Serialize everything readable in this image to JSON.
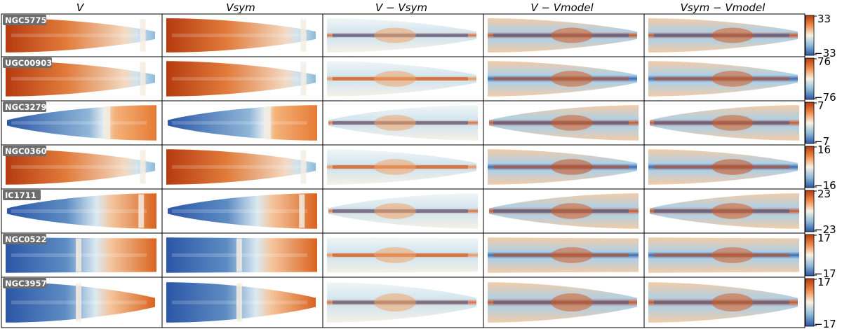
{
  "figure": {
    "column_titles": [
      {
        "main": "V",
        "sub": ""
      },
      {
        "main": "V",
        "sub": "sym"
      },
      {
        "main": "V − V",
        "sub": "sym"
      },
      {
        "main": "V − V",
        "sub": "model"
      },
      {
        "main": "V",
        "sub": "sym",
        "tail": " − V",
        "tail_sub": "model"
      }
    ],
    "column_title_texts": [
      "V",
      "Vsym",
      "V − Vsym",
      "V − Vmodel",
      "Vsym − Vmodel"
    ],
    "rows": [
      {
        "galaxy": "NGC5775",
        "cb_max": "33",
        "cb_min": "−33",
        "shape": "tail-right",
        "lead_side": "left"
      },
      {
        "galaxy": "UGC00903",
        "cb_max": "76",
        "cb_min": "−76",
        "shape": "tail-right",
        "lead_side": "left"
      },
      {
        "galaxy": "NGC3279",
        "cb_max": "7",
        "cb_min": "−7",
        "shape": "tail-left",
        "lead_side": "right"
      },
      {
        "galaxy": "NGC0360",
        "cb_max": "16",
        "cb_min": "−16",
        "shape": "tail-right",
        "lead_side": "left"
      },
      {
        "galaxy": "IC1711",
        "cb_max": "23",
        "cb_min": "−23",
        "shape": "tail-left",
        "lead_side": "right"
      },
      {
        "galaxy": "NGC0522",
        "cb_max": "17",
        "cb_min": "−17",
        "shape": "rect",
        "lead_side": "right"
      },
      {
        "galaxy": "NGC3957",
        "cb_max": "17",
        "cb_min": "−17",
        "shape": "tail-right",
        "lead_side": "right"
      }
    ],
    "colormap": {
      "low": "#2b56a6",
      "mid": "#f7f2e3",
      "high": "#b63b10"
    }
  }
}
